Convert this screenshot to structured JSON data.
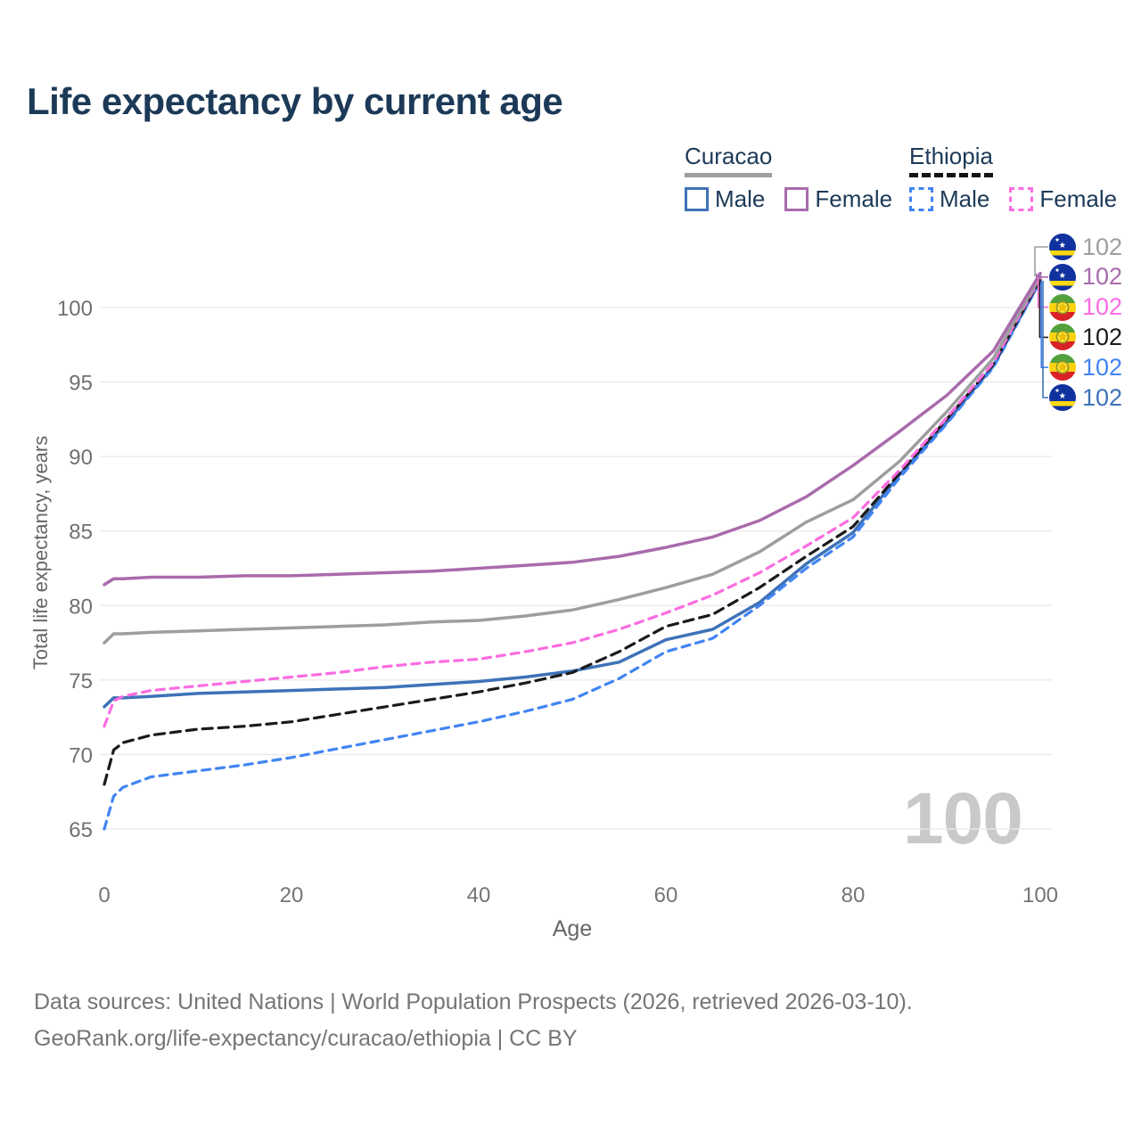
{
  "title": "Life expectancy by current age",
  "legend": {
    "groups": [
      {
        "label": "Curacao",
        "style": "solid",
        "underline_color": "#9e9e9e",
        "items": [
          {
            "label": "Male",
            "color": "#3e72b8",
            "style": "solid"
          },
          {
            "label": "Female",
            "color": "#a96bac",
            "style": "solid"
          }
        ]
      },
      {
        "label": "Ethiopia",
        "style": "dashed",
        "underline_color": "#141414",
        "items": [
          {
            "label": "Male",
            "color": "#4184f3",
            "style": "dashed"
          },
          {
            "label": "Female",
            "color": "#fb6ce1",
            "style": "dashed"
          }
        ]
      }
    ]
  },
  "watermark": "100",
  "end_labels": [
    {
      "flag": "curacao",
      "series": "curacao-all",
      "value": "102",
      "color": "#9e9e9e"
    },
    {
      "flag": "curacao",
      "series": "curacao-female",
      "value": "102",
      "color": "#a96bac"
    },
    {
      "flag": "ethiopia",
      "series": "ethiopia-female",
      "value": "102",
      "color": "#fb6ce1"
    },
    {
      "flag": "ethiopia",
      "series": "ethiopia-all",
      "value": "102",
      "color": "#1a1a1a"
    },
    {
      "flag": "ethiopia",
      "series": "ethiopia-male",
      "value": "102",
      "color": "#4184f3"
    },
    {
      "flag": "curacao",
      "series": "curacao-male",
      "value": "102",
      "color": "#3e72b8"
    }
  ],
  "footer": {
    "line1": "Data sources: United Nations | World Population Prospects (2026, retrieved 2026-03-10).",
    "line2": "GeoRank.org/life-expectancy/curacao/ethiopia | CC BY"
  },
  "chart_data": {
    "type": "line",
    "title": "Life expectancy by current age",
    "xlabel": "Age",
    "ylabel": "Total life expectancy, years",
    "xlim": [
      0,
      100
    ],
    "ylim": [
      63.5,
      103
    ],
    "xticks": [
      0,
      20,
      40,
      60,
      80,
      100
    ],
    "yticks": [
      65,
      70,
      75,
      80,
      85,
      90,
      95,
      100
    ],
    "grid": true,
    "legend_position": "top-right",
    "x": [
      0,
      1,
      2,
      5,
      10,
      15,
      20,
      25,
      30,
      35,
      40,
      45,
      50,
      55,
      60,
      65,
      70,
      75,
      80,
      85,
      90,
      95,
      100
    ],
    "series": [
      {
        "key": "curacao-male",
        "name": "Curacao Male",
        "country": "Curacao",
        "sex": "male",
        "style": "solid",
        "color": "#3e72b8",
        "values": [
          73.2,
          73.8,
          73.8,
          73.9,
          74.1,
          74.2,
          74.3,
          74.4,
          74.5,
          74.7,
          74.9,
          75.2,
          75.6,
          76.2,
          77.7,
          78.4,
          80.2,
          82.8,
          84.9,
          88.8,
          92.3,
          96.1,
          101.8
        ]
      },
      {
        "key": "ethiopia-male",
        "name": "Ethiopia Male",
        "country": "Ethiopia",
        "sex": "male",
        "style": "dashed",
        "color": "#4184f3",
        "values": [
          65.0,
          67.2,
          67.8,
          68.5,
          68.9,
          69.3,
          69.8,
          70.4,
          71.0,
          71.6,
          72.2,
          72.9,
          73.7,
          75.1,
          76.9,
          77.8,
          80.0,
          82.5,
          84.6,
          88.6,
          92.2,
          96.0,
          101.75
        ]
      },
      {
        "key": "ethiopia-all",
        "name": "Ethiopia Both sexes",
        "country": "Ethiopia",
        "sex": "all",
        "style": "dashed",
        "color": "#1a1a1a",
        "values": [
          68.0,
          70.3,
          70.8,
          71.3,
          71.7,
          71.9,
          72.2,
          72.7,
          73.2,
          73.7,
          74.2,
          74.8,
          75.5,
          76.9,
          78.6,
          79.4,
          81.2,
          83.3,
          85.3,
          88.9,
          92.5,
          96.2,
          101.9
        ]
      },
      {
        "key": "ethiopia-female",
        "name": "Ethiopia Female",
        "country": "Ethiopia",
        "sex": "female",
        "style": "dashed",
        "color": "#fb6ce1",
        "values": [
          71.9,
          73.6,
          73.9,
          74.3,
          74.6,
          74.9,
          75.2,
          75.5,
          75.9,
          76.2,
          76.4,
          76.9,
          77.5,
          78.4,
          79.5,
          80.7,
          82.2,
          84.0,
          85.9,
          89.1,
          92.6,
          96.3,
          102.0
        ]
      },
      {
        "key": "curacao-all",
        "name": "Curacao Both sexes",
        "country": "Curacao",
        "sex": "all",
        "style": "solid",
        "color": "#9e9e9e",
        "values": [
          77.5,
          78.1,
          78.1,
          78.2,
          78.3,
          78.4,
          78.5,
          78.6,
          78.7,
          78.9,
          79.0,
          79.3,
          79.7,
          80.4,
          81.2,
          82.1,
          83.6,
          85.6,
          87.1,
          89.7,
          93.0,
          96.6,
          102.1
        ]
      },
      {
        "key": "curacao-female",
        "name": "Curacao Female",
        "country": "Curacao",
        "sex": "female",
        "style": "solid",
        "color": "#a96bac",
        "values": [
          81.4,
          81.8,
          81.8,
          81.9,
          81.9,
          82.0,
          82.0,
          82.1,
          82.2,
          82.3,
          82.5,
          82.7,
          82.9,
          83.3,
          83.9,
          84.6,
          85.7,
          87.3,
          89.4,
          91.7,
          94.1,
          97.1,
          102.3
        ]
      }
    ]
  }
}
